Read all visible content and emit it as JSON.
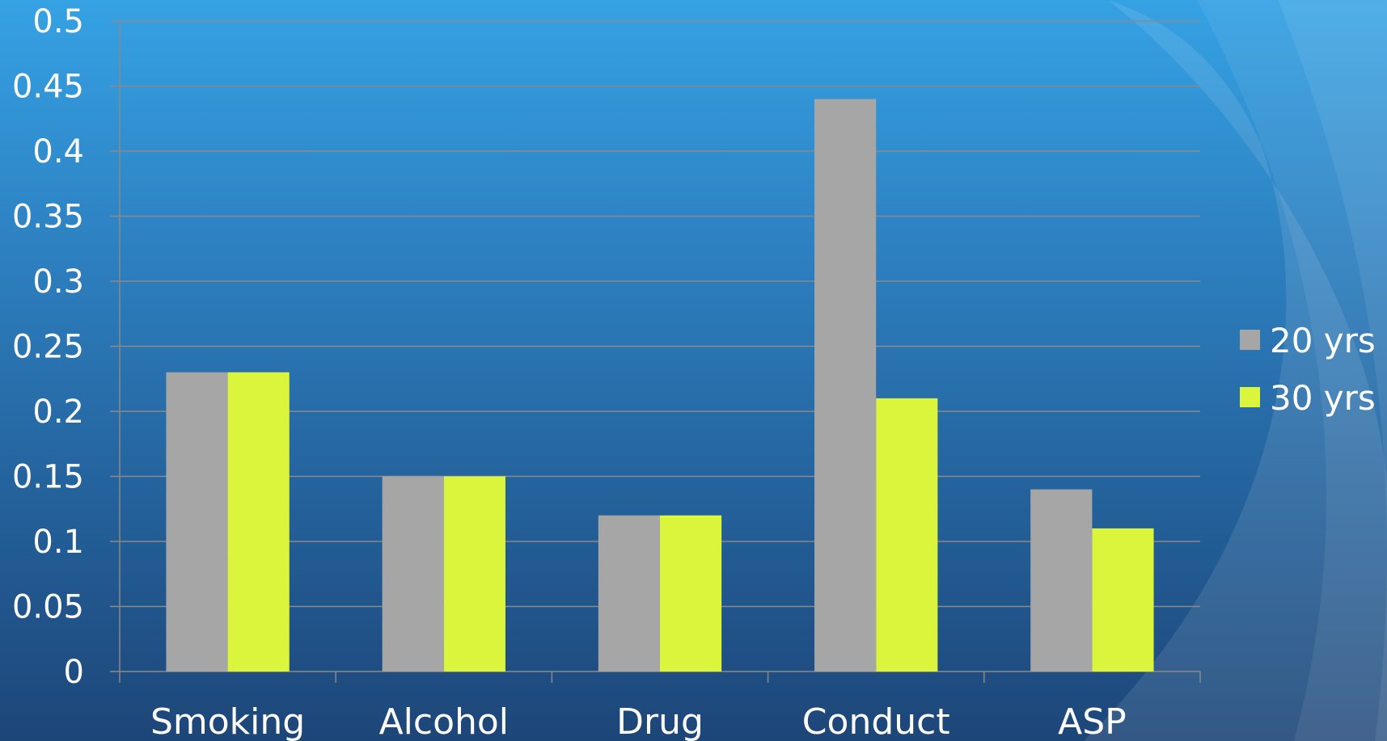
{
  "chart_data": {
    "type": "bar",
    "categories": [
      "Smoking",
      "Alcohol",
      "Drug",
      "Conduct",
      "ASP"
    ],
    "series": [
      {
        "name": "20 yrs",
        "values": [
          0.23,
          0.15,
          0.12,
          0.44,
          0.14
        ],
        "color": "#a6a6a6"
      },
      {
        "name": "30 yrs",
        "values": [
          0.23,
          0.15,
          0.12,
          0.21,
          0.11
        ],
        "color": "#dbf53c"
      }
    ],
    "yticks": [
      "0",
      "0.05",
      "0.1",
      "0.15",
      "0.2",
      "0.25",
      "0.3",
      "0.35",
      "0.4",
      "0.45",
      "0.5"
    ],
    "ylim": [
      0,
      0.5
    ],
    "grid": true,
    "legend_position": "right",
    "title": "",
    "xlabel": "",
    "ylabel": ""
  }
}
